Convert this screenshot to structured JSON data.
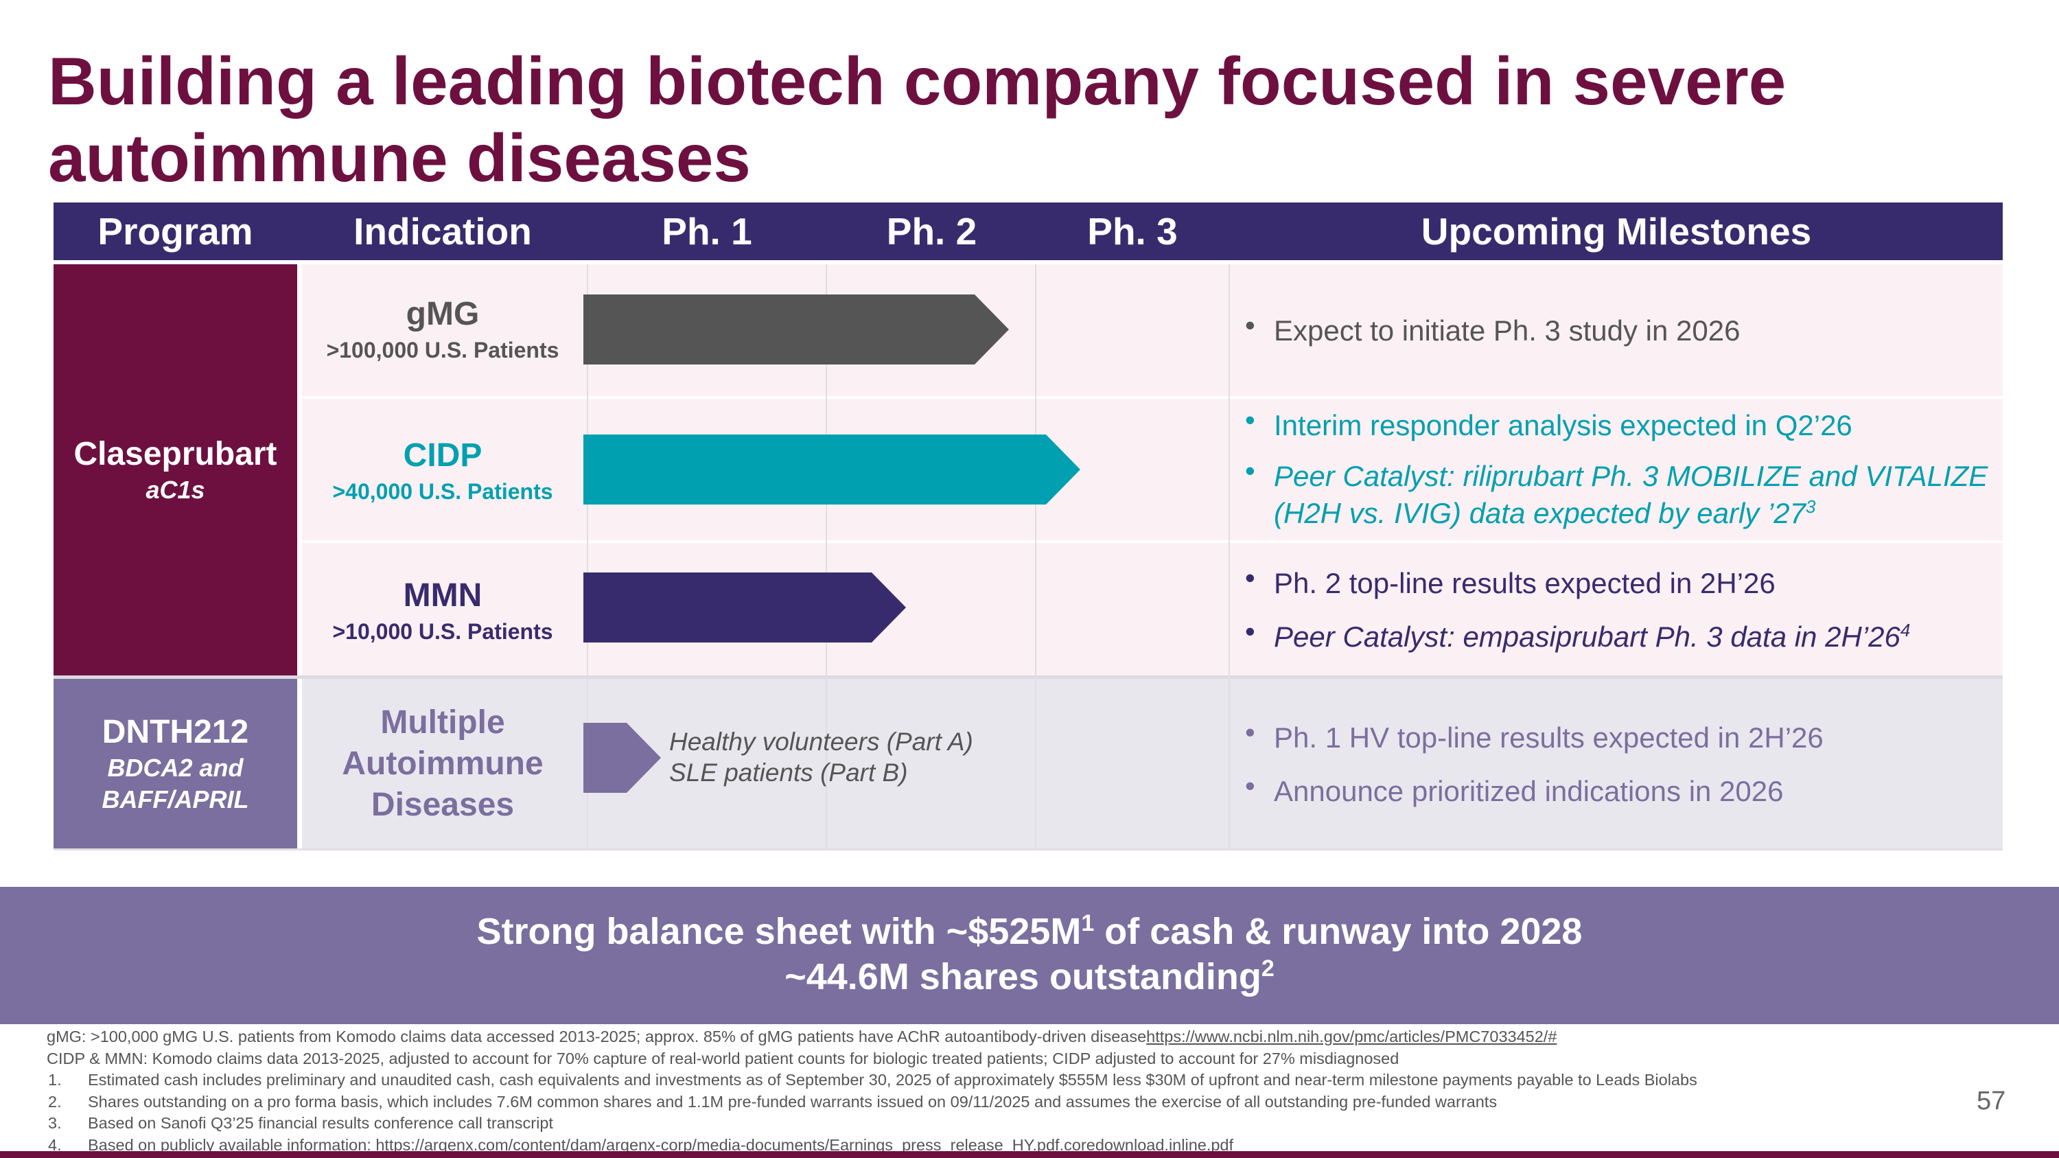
{
  "title": "Building a leading biotech company focused in severe autoimmune diseases",
  "table": {
    "headers": {
      "program": "Program",
      "indication": "Indication",
      "ph1": "Ph. 1",
      "ph2": "Ph. 2",
      "ph3": "Ph. 3",
      "milestones": "Upcoming Milestones"
    },
    "programs": [
      {
        "name": "Claseprubart",
        "sub": "aC1s"
      },
      {
        "name": "DNTH212",
        "sub": "BDCA2 and BAFF/APRIL"
      }
    ],
    "rows": [
      {
        "indication": "gMG",
        "patients": ">100,000 U.S. Patients",
        "milestones": [
          "Expect to initiate Ph. 3 study in 2026"
        ]
      },
      {
        "indication": "CIDP",
        "patients": ">40,000 U.S. Patients",
        "milestone_1": "Interim responder analysis expected in Q2’26",
        "milestone_2": "Peer Catalyst: riliprubart Ph. 3 MOBILIZE and VITALIZE (H2H vs. IVIG) data expected by early ’27",
        "milestone_2_ref": "3"
      },
      {
        "indication": "MMN",
        "patients": ">10,000 U.S. Patients",
        "milestone_1": "Ph. 2 top-line results expected in 2H’26",
        "milestone_2": "Peer Catalyst: empasiprubart Ph. 3 data in 2H’26",
        "milestone_2_ref": "4"
      },
      {
        "indication": "Multiple Autoimmune Diseases",
        "bar_note_1": "Healthy volunteers (Part A)",
        "bar_note_2": "SLE patients (Part B)",
        "milestones": [
          "Ph. 1 HV top-line results expected in 2H’26",
          "Announce prioritized indications in 2026"
        ]
      }
    ],
    "progress": {
      "gmg": 0.66,
      "cidp": 0.77,
      "mmn": 0.5,
      "dnth212": 0.12
    }
  },
  "banner": {
    "line1_pre": "Strong balance sheet with ~$525M",
    "line1_ref": "1",
    "line1_post": " of cash & runway into 2028",
    "line2": "~44.6M shares outstanding",
    "line2_ref": "2"
  },
  "footnotes": {
    "gmg_note": "gMG: >100,000 gMG U.S. patients from Komodo claims data accessed 2013-2025; approx. 85% of gMG patients have AChR autoantibody-driven disease",
    "gmg_link": "https://www.ncbi.nlm.nih.gov/pmc/articles/PMC7033452/#",
    "cidp_note": "CIDP & MMN: Komodo claims data 2013-2025, adjusted to account for 70% capture of real-world patient counts for biologic treated patients; CIDP adjusted to account for 27% misdiagnosed",
    "items": [
      {
        "num": "1.",
        "text": "Estimated cash includes preliminary and unaudited cash, cash equivalents and investments as of September 30, 2025 of approximately $555M less $30M of upfront and near-term milestone payments payable to Leads Biolabs"
      },
      {
        "num": "2.",
        "text": "Shares outstanding on a pro forma basis, which includes 7.6M common shares and 1.1M pre-funded warrants issued on 09/11/2025 and assumes the exercise of all outstanding pre-funded warrants"
      },
      {
        "num": "3.",
        "text": "Based on Sanofi Q3’25 financial results conference call transcript"
      },
      {
        "num": "4.",
        "text": "Based on publicly available information: ",
        "link": "https://argenx.com/content/dam/argenx-corp/media-documents/Earnings_press_release_HY.pdf.coredownload.inline.pdf"
      }
    ]
  },
  "page_number": "57",
  "colors": {
    "maroon": "#6d1040",
    "navy": "#382b6d",
    "teal": "#00a0b0",
    "gray_bar": "#555555",
    "purple": "#7a6f9e",
    "row_pink": "#fbf0f4",
    "row_gray": "#e9e7ee"
  }
}
